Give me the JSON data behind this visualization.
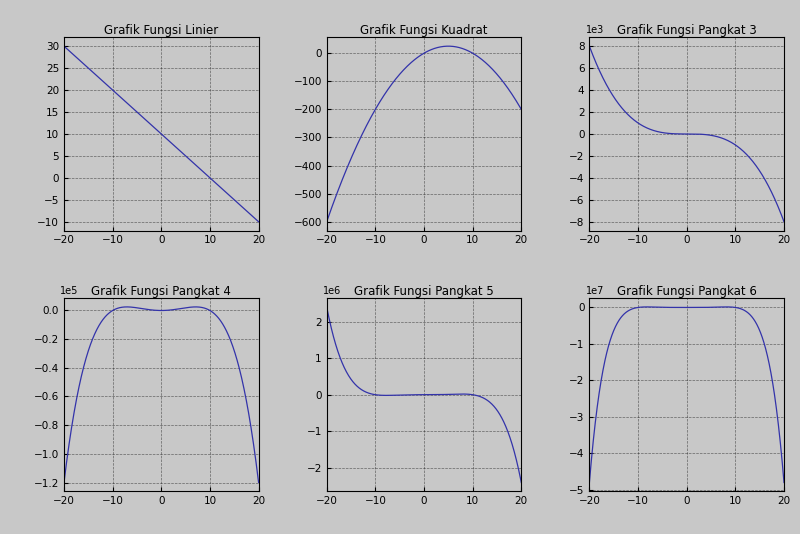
{
  "titles": [
    "Grafik Fungsi Linier",
    "Grafik Fungsi Kuadrat",
    "Grafik Fungsi Pangkat 3",
    "Grafik Fungsi Pangkat 4",
    "Grafik Fungsi Pangkat 5",
    "Grafik Fungsi Pangkat 6"
  ],
  "x_range": [
    -20,
    20
  ],
  "n_points": 1000,
  "line_color": "#3333aa",
  "bg_color": "#c8c8c8",
  "axes_bg_color": "#c8c8c8",
  "grid_color": "#000000",
  "title_fontsize": 8.5,
  "tick_fontsize": 7.5,
  "figsize": [
    8.0,
    5.34
  ]
}
